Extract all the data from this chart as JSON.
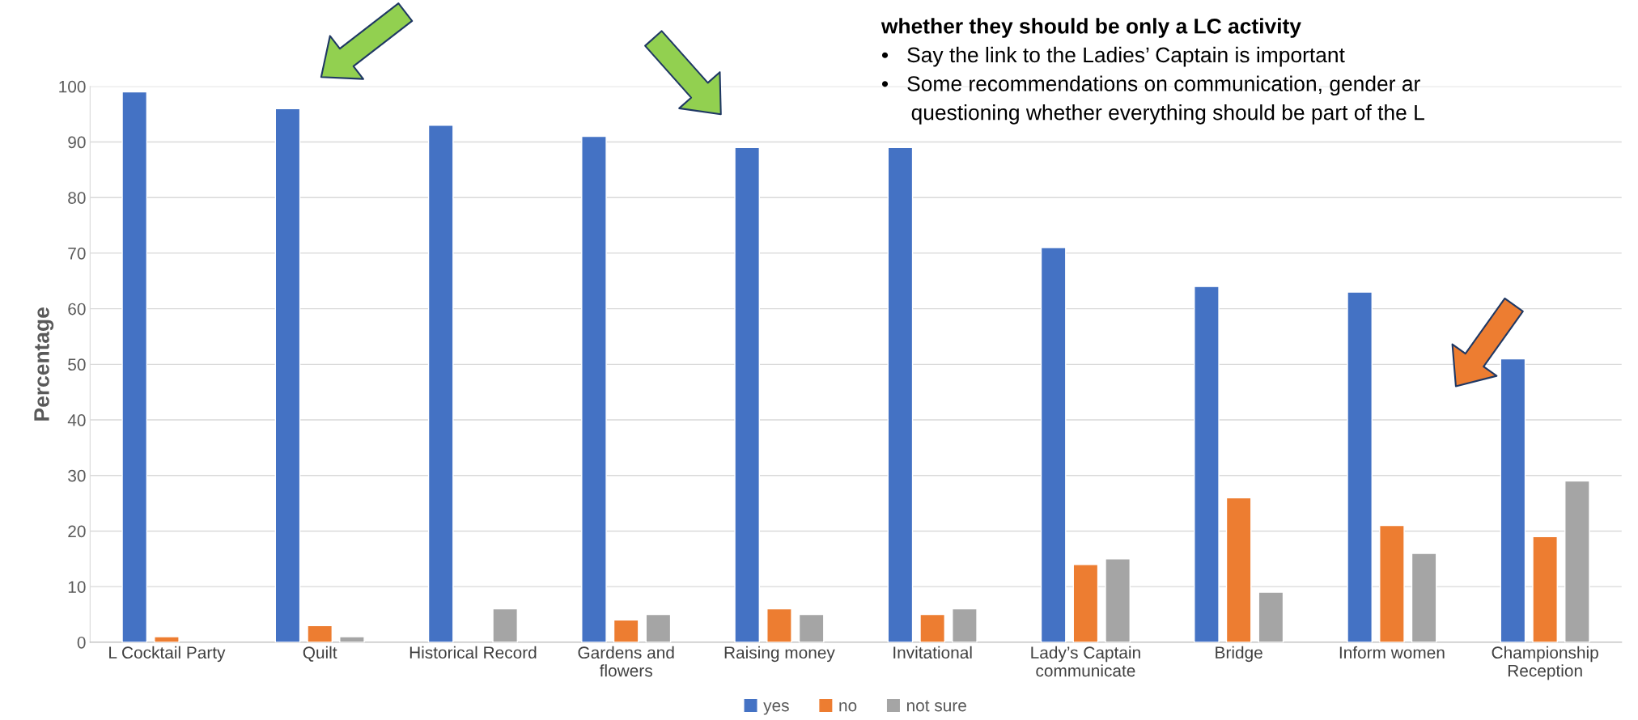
{
  "chart_data": {
    "type": "bar",
    "ylabel": "Percentage",
    "categories": [
      "L Cocktail Party",
      "Quilt",
      "Historical Record",
      "Gardens and\nflowers",
      "Raising money",
      "Invitational",
      "Lady’s Captain\ncommunicate",
      "Bridge",
      "Inform women",
      "Championship\nReception"
    ],
    "series": [
      {
        "name": "yes",
        "color": "#4472c4",
        "values": [
          99,
          96,
          93,
          91,
          89,
          89,
          71,
          64,
          63,
          51
        ]
      },
      {
        "name": "no",
        "color": "#ed7d31",
        "values": [
          1,
          3,
          null,
          4,
          6,
          5,
          14,
          26,
          21,
          19
        ]
      },
      {
        "name": "not sure",
        "color": "#a5a5a5",
        "values": [
          null,
          1,
          6,
          5,
          5,
          6,
          15,
          9,
          16,
          29
        ]
      }
    ],
    "ylim": [
      0,
      100
    ],
    "yticks": [
      0,
      10,
      20,
      30,
      40,
      50,
      60,
      70,
      80,
      90,
      100
    ],
    "grid": "y",
    "legend": "bottom",
    "annotations": [
      "whether they should be only a LC activity",
      "•   Say the link to the Ladies’ Captain is important",
      "•   Some recommendations on communication, gender ar",
      "     questioning whether everything should be part of the L"
    ]
  }
}
